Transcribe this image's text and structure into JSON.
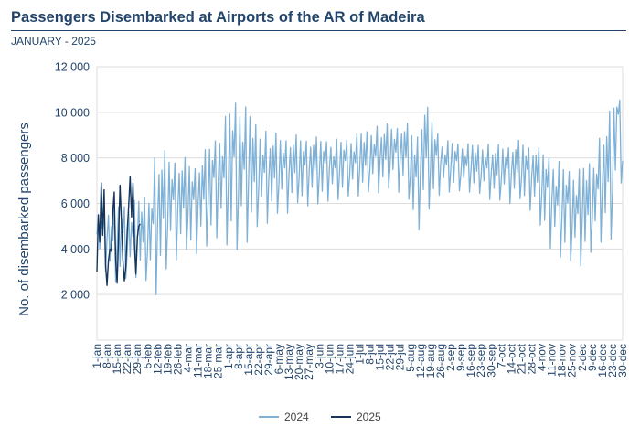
{
  "header": {
    "title": "Passengers Disembarked at Airports of the AR of Madeira",
    "subtitle": "JANUARY - 2025"
  },
  "colors": {
    "title": "#23456b",
    "series_2024": "#7fb1d6",
    "series_2025": "#15355c",
    "grid": "#dddddd"
  },
  "chart_data": {
    "type": "line",
    "title": "",
    "ylabel": "No. of disembarked passengers",
    "xlabel": "",
    "ylim": [
      0,
      12000
    ],
    "yticks": [
      2000,
      4000,
      6000,
      8000,
      10000,
      12000
    ],
    "ytick_labels": [
      "2 000",
      "4 000",
      "6 000",
      "8 000",
      "10 000",
      "12 000"
    ],
    "grid": true,
    "legend_position": "bottom",
    "x_range_days": [
      1,
      365
    ],
    "x_tick_labels": [
      "1-jan",
      "8-jan",
      "15-jan",
      "22-jan",
      "29-jan",
      "5-feb",
      "12-feb",
      "19-feb",
      "26-feb",
      "4-mar",
      "11-mar",
      "18-mar",
      "25-mar",
      "1-apr",
      "8-apr",
      "15-apr",
      "22-apr",
      "29-apr",
      "6-may",
      "13-may",
      "20-may",
      "27-may",
      "3-jun",
      "10-jun",
      "17-jun",
      "24-jun",
      "1-jul",
      "8-jul",
      "15-jul",
      "22-jul",
      "29-jul",
      "5-aug",
      "12-aug",
      "19-aug",
      "26-aug",
      "2-sep",
      "9-sep",
      "16-sep",
      "23-sep",
      "30-sep",
      "7-oct",
      "14-oct",
      "21-oct",
      "28-oct",
      "4-nov",
      "11-nov",
      "18-nov",
      "25-nov",
      "2-dec",
      "9-dec",
      "16-dec",
      "23-dec",
      "30-dec"
    ],
    "series": [
      {
        "name": "2024",
        "anchors": [
          {
            "day": 1,
            "low": 4000,
            "high": 5500
          },
          {
            "day": 10,
            "low": 2500,
            "high": 6000
          },
          {
            "day": 20,
            "low": 2600,
            "high": 6000
          },
          {
            "day": 31,
            "low": 2800,
            "high": 6200
          },
          {
            "day": 38,
            "low": 2200,
            "high": 6500
          },
          {
            "day": 42,
            "low": 2000,
            "high": 8500
          },
          {
            "day": 55,
            "low": 3500,
            "high": 8200
          },
          {
            "day": 70,
            "low": 3800,
            "high": 7800
          },
          {
            "day": 85,
            "low": 4500,
            "high": 9200
          },
          {
            "day": 98,
            "low": 3800,
            "high": 10800
          },
          {
            "day": 115,
            "low": 5000,
            "high": 9200
          },
          {
            "day": 140,
            "low": 5800,
            "high": 9000
          },
          {
            "day": 170,
            "low": 6200,
            "high": 8800
          },
          {
            "day": 200,
            "low": 6500,
            "high": 9500
          },
          {
            "day": 215,
            "low": 6500,
            "high": 9600
          },
          {
            "day": 222,
            "low": 4500,
            "high": 9000
          },
          {
            "day": 228,
            "low": 5500,
            "high": 10500
          },
          {
            "day": 240,
            "low": 6500,
            "high": 8800
          },
          {
            "day": 260,
            "low": 6500,
            "high": 8600
          },
          {
            "day": 280,
            "low": 6000,
            "high": 8600
          },
          {
            "day": 295,
            "low": 6000,
            "high": 8800
          },
          {
            "day": 305,
            "low": 5500,
            "high": 8500
          },
          {
            "day": 315,
            "low": 4000,
            "high": 8200
          },
          {
            "day": 325,
            "low": 3500,
            "high": 7600
          },
          {
            "day": 335,
            "low": 3200,
            "high": 7500
          },
          {
            "day": 345,
            "low": 3800,
            "high": 8000
          },
          {
            "day": 352,
            "low": 4500,
            "high": 9500
          },
          {
            "day": 358,
            "low": 4000,
            "high": 10400
          },
          {
            "day": 362,
            "low": 7500,
            "high": 11700
          },
          {
            "day": 365,
            "low": 6600,
            "high": 9200
          }
        ]
      },
      {
        "name": "2025",
        "values": [
          3000,
          5500,
          4300,
          6900,
          4600,
          6600,
          3300,
          2400,
          3500,
          4000,
          3900,
          5600,
          6500,
          3500,
          2500,
          4500,
          6800,
          5200,
          3500,
          2600,
          3200,
          4800,
          5900,
          7200,
          5400,
          6900,
          4200,
          2900,
          4500,
          5000,
          5100
        ]
      }
    ]
  }
}
